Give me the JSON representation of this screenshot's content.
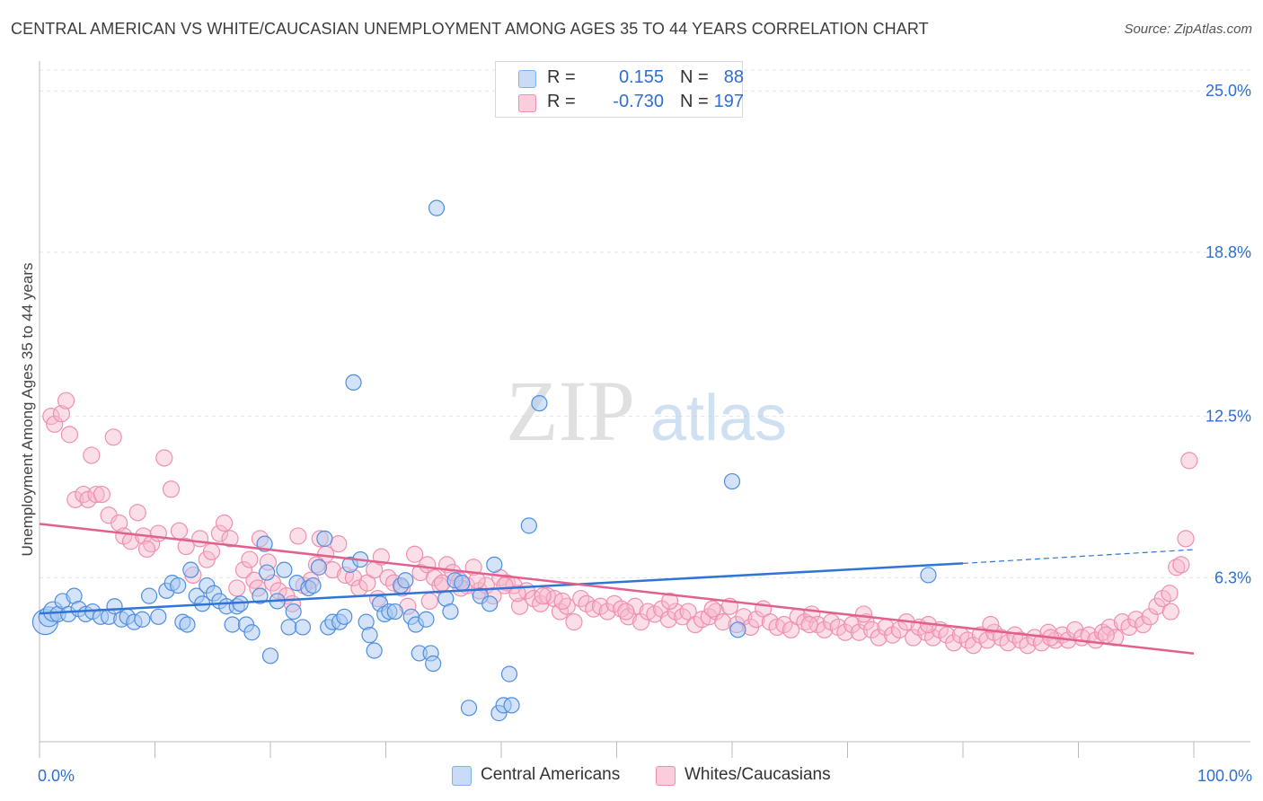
{
  "title": "CENTRAL AMERICAN VS WHITE/CAUCASIAN UNEMPLOYMENT AMONG AGES 35 TO 44 YEARS CORRELATION CHART",
  "source": "Source: ZipAtlas.com",
  "watermark": {
    "zip": "ZIP",
    "atlas": "atlas"
  },
  "legend": {
    "series": [
      {
        "r_label": "R =",
        "r_value": "0.155",
        "n_label": "N =",
        "n_value": "88",
        "color": "#7eb0f0",
        "fill": "#c9dcf7"
      },
      {
        "r_label": "R =",
        "r_value": "-0.730",
        "n_label": "N =",
        "n_value": "197",
        "color": "#f08fb0",
        "fill": "#f9cddc"
      }
    ]
  },
  "bottom_legend": {
    "series1": "Central Americans",
    "series2": "Whites/Caucasians"
  },
  "chart_data": {
    "type": "scatter",
    "title": "CENTRAL AMERICAN VS WHITE/CAUCASIAN UNEMPLOYMENT AMONG AGES 35 TO 44 YEARS CORRELATION CHART",
    "ylabel": "Unemployment Among Ages 35 to 44 years",
    "xlabel": "",
    "xlim": [
      0,
      100
    ],
    "ylim": [
      0,
      25.8
    ],
    "x_tick_labels": {
      "min": "0.0%",
      "max": "100.0%"
    },
    "y_ticks": [
      {
        "value": 6.3,
        "label": "6.3%"
      },
      {
        "value": 12.5,
        "label": "12.5%"
      },
      {
        "value": 18.8,
        "label": "18.8%"
      },
      {
        "value": 25.0,
        "label": "25.0%"
      }
    ],
    "grid": true,
    "legend_position": "top-center",
    "series": [
      {
        "name": "Central Americans",
        "color": "#3d7fd9",
        "points": [
          [
            0.5,
            4.6
          ],
          [
            0.8,
            4.8
          ],
          [
            1.2,
            5.0
          ],
          [
            1.6,
            4.9
          ],
          [
            2.0,
            5.4
          ],
          [
            2.5,
            4.9
          ],
          [
            3.0,
            5.6
          ],
          [
            3.4,
            5.1
          ],
          [
            4.0,
            4.9
          ],
          [
            4.6,
            5.0
          ],
          [
            5.3,
            4.8
          ],
          [
            6.0,
            4.8
          ],
          [
            6.5,
            5.2
          ],
          [
            7.1,
            4.7
          ],
          [
            7.6,
            4.8
          ],
          [
            8.2,
            4.6
          ],
          [
            8.9,
            4.7
          ],
          [
            9.5,
            5.6
          ],
          [
            10.3,
            4.8
          ],
          [
            11.0,
            5.8
          ],
          [
            11.5,
            6.1
          ],
          [
            12.0,
            6.0
          ],
          [
            12.4,
            4.6
          ],
          [
            12.8,
            4.5
          ],
          [
            13.1,
            6.6
          ],
          [
            13.6,
            5.6
          ],
          [
            14.1,
            5.3
          ],
          [
            14.5,
            6.0
          ],
          [
            15.1,
            5.7
          ],
          [
            15.6,
            5.4
          ],
          [
            16.2,
            5.2
          ],
          [
            16.7,
            4.5
          ],
          [
            17.1,
            5.2
          ],
          [
            17.4,
            5.3
          ],
          [
            17.9,
            4.5
          ],
          [
            18.4,
            4.2
          ],
          [
            19.1,
            5.6
          ],
          [
            19.5,
            7.6
          ],
          [
            19.7,
            6.5
          ],
          [
            20.0,
            3.3
          ],
          [
            20.6,
            5.4
          ],
          [
            21.2,
            6.6
          ],
          [
            21.6,
            4.4
          ],
          [
            22.0,
            5.0
          ],
          [
            22.3,
            6.1
          ],
          [
            22.8,
            4.4
          ],
          [
            23.3,
            5.9
          ],
          [
            23.7,
            6.0
          ],
          [
            24.2,
            6.7
          ],
          [
            24.7,
            7.8
          ],
          [
            25.0,
            4.4
          ],
          [
            25.4,
            4.6
          ],
          [
            26.0,
            4.6
          ],
          [
            26.4,
            4.8
          ],
          [
            26.9,
            6.8
          ],
          [
            27.2,
            13.8
          ],
          [
            27.8,
            7.0
          ],
          [
            28.3,
            4.6
          ],
          [
            28.6,
            4.1
          ],
          [
            29.0,
            3.5
          ],
          [
            29.5,
            5.3
          ],
          [
            29.9,
            4.9
          ],
          [
            30.3,
            5.0
          ],
          [
            30.8,
            5.0
          ],
          [
            31.3,
            6.0
          ],
          [
            31.7,
            6.2
          ],
          [
            32.2,
            4.8
          ],
          [
            32.6,
            4.5
          ],
          [
            32.9,
            3.4
          ],
          [
            33.5,
            4.7
          ],
          [
            33.9,
            3.4
          ],
          [
            34.1,
            3.0
          ],
          [
            34.4,
            20.5
          ],
          [
            35.2,
            5.5
          ],
          [
            35.6,
            5.0
          ],
          [
            36.0,
            6.2
          ],
          [
            36.6,
            6.1
          ],
          [
            37.2,
            1.3
          ],
          [
            38.2,
            5.6
          ],
          [
            39.0,
            5.3
          ],
          [
            39.4,
            6.8
          ],
          [
            39.8,
            1.1
          ],
          [
            40.2,
            1.4
          ],
          [
            40.7,
            2.6
          ],
          [
            40.9,
            1.4
          ],
          [
            42.4,
            8.3
          ],
          [
            43.3,
            13.0
          ],
          [
            60.0,
            10.0
          ],
          [
            60.5,
            4.3
          ],
          [
            77.0,
            6.4
          ]
        ]
      },
      {
        "name": "Whites/Caucasians",
        "color": "#e0608e",
        "points": [
          [
            1.0,
            12.5
          ],
          [
            1.3,
            12.2
          ],
          [
            1.9,
            12.6
          ],
          [
            2.3,
            13.1
          ],
          [
            2.6,
            11.8
          ],
          [
            3.1,
            9.3
          ],
          [
            3.8,
            9.5
          ],
          [
            4.2,
            9.3
          ],
          [
            4.5,
            11.0
          ],
          [
            4.9,
            9.5
          ],
          [
            5.4,
            9.5
          ],
          [
            6.0,
            8.7
          ],
          [
            6.4,
            11.7
          ],
          [
            6.9,
            8.4
          ],
          [
            7.3,
            7.9
          ],
          [
            7.9,
            7.7
          ],
          [
            8.5,
            8.8
          ],
          [
            9.0,
            7.9
          ],
          [
            9.7,
            7.6
          ],
          [
            10.3,
            8.0
          ],
          [
            10.8,
            10.9
          ],
          [
            11.4,
            9.7
          ],
          [
            12.1,
            8.1
          ],
          [
            12.7,
            7.5
          ],
          [
            13.3,
            6.4
          ],
          [
            13.9,
            7.8
          ],
          [
            14.5,
            7.0
          ],
          [
            14.9,
            7.3
          ],
          [
            15.6,
            8.0
          ],
          [
            16.0,
            8.4
          ],
          [
            16.5,
            7.8
          ],
          [
            17.1,
            5.9
          ],
          [
            17.7,
            6.6
          ],
          [
            18.2,
            7.0
          ],
          [
            18.6,
            6.2
          ],
          [
            19.1,
            7.8
          ],
          [
            19.8,
            6.9
          ],
          [
            20.2,
            6.1
          ],
          [
            20.7,
            5.8
          ],
          [
            21.4,
            5.6
          ],
          [
            21.9,
            5.3
          ],
          [
            22.4,
            7.9
          ],
          [
            22.9,
            6.0
          ],
          [
            23.5,
            6.2
          ],
          [
            24.3,
            7.8
          ],
          [
            24.8,
            7.2
          ],
          [
            25.4,
            6.6
          ],
          [
            25.9,
            7.6
          ],
          [
            26.5,
            6.4
          ],
          [
            27.2,
            6.3
          ],
          [
            27.7,
            5.9
          ],
          [
            28.4,
            6.1
          ],
          [
            29.0,
            6.6
          ],
          [
            29.6,
            7.1
          ],
          [
            30.2,
            6.3
          ],
          [
            30.7,
            6.1
          ],
          [
            31.4,
            5.9
          ],
          [
            31.9,
            5.2
          ],
          [
            32.5,
            7.2
          ],
          [
            33.0,
            6.5
          ],
          [
            33.6,
            6.8
          ],
          [
            34.2,
            6.3
          ],
          [
            34.7,
            6.0
          ],
          [
            35.3,
            6.8
          ],
          [
            35.8,
            6.5
          ],
          [
            36.4,
            6.2
          ],
          [
            37.0,
            6.0
          ],
          [
            37.6,
            6.7
          ],
          [
            38.1,
            5.8
          ],
          [
            38.7,
            6.0
          ],
          [
            39.3,
            5.6
          ],
          [
            39.9,
            6.3
          ],
          [
            40.5,
            6.1
          ],
          [
            41.1,
            6.0
          ],
          [
            41.6,
            5.2
          ],
          [
            42.2,
            5.8
          ],
          [
            42.8,
            5.5
          ],
          [
            43.4,
            5.3
          ],
          [
            44.0,
            5.6
          ],
          [
            44.6,
            5.5
          ],
          [
            45.1,
            5.0
          ],
          [
            45.7,
            5.2
          ],
          [
            46.3,
            4.6
          ],
          [
            46.9,
            5.5
          ],
          [
            47.4,
            5.3
          ],
          [
            48.0,
            5.1
          ],
          [
            48.6,
            5.2
          ],
          [
            49.2,
            5.0
          ],
          [
            49.8,
            5.3
          ],
          [
            50.4,
            5.1
          ],
          [
            51.0,
            4.8
          ],
          [
            51.6,
            5.2
          ],
          [
            52.1,
            4.6
          ],
          [
            52.7,
            5.0
          ],
          [
            53.3,
            4.9
          ],
          [
            53.9,
            5.1
          ],
          [
            54.5,
            4.7
          ],
          [
            55.1,
            5.0
          ],
          [
            55.7,
            4.8
          ],
          [
            56.2,
            5.0
          ],
          [
            56.8,
            4.5
          ],
          [
            57.4,
            4.7
          ],
          [
            58.0,
            4.8
          ],
          [
            58.6,
            5.0
          ],
          [
            59.2,
            4.6
          ],
          [
            59.8,
            5.2
          ],
          [
            60.4,
            4.5
          ],
          [
            61.0,
            4.8
          ],
          [
            61.6,
            4.4
          ],
          [
            62.1,
            4.7
          ],
          [
            62.7,
            5.1
          ],
          [
            63.3,
            4.6
          ],
          [
            63.9,
            4.4
          ],
          [
            64.5,
            4.5
          ],
          [
            65.1,
            4.3
          ],
          [
            65.7,
            4.8
          ],
          [
            66.3,
            4.6
          ],
          [
            66.9,
            4.9
          ],
          [
            67.4,
            4.5
          ],
          [
            68.0,
            4.3
          ],
          [
            68.6,
            4.6
          ],
          [
            69.2,
            4.4
          ],
          [
            69.8,
            4.2
          ],
          [
            70.4,
            4.5
          ],
          [
            71.0,
            4.2
          ],
          [
            71.6,
            4.6
          ],
          [
            72.1,
            4.3
          ],
          [
            72.7,
            4.0
          ],
          [
            73.3,
            4.4
          ],
          [
            73.9,
            4.1
          ],
          [
            74.5,
            4.3
          ],
          [
            75.1,
            4.6
          ],
          [
            75.7,
            4.0
          ],
          [
            76.2,
            4.4
          ],
          [
            76.8,
            4.2
          ],
          [
            77.4,
            4.0
          ],
          [
            78.0,
            4.3
          ],
          [
            78.6,
            4.1
          ],
          [
            79.2,
            3.8
          ],
          [
            79.8,
            4.1
          ],
          [
            80.4,
            3.9
          ],
          [
            80.9,
            3.7
          ],
          [
            81.5,
            4.1
          ],
          [
            82.1,
            3.9
          ],
          [
            82.7,
            4.2
          ],
          [
            83.3,
            4.0
          ],
          [
            83.9,
            3.8
          ],
          [
            84.5,
            4.1
          ],
          [
            85.0,
            3.9
          ],
          [
            85.6,
            3.7
          ],
          [
            86.2,
            4.0
          ],
          [
            86.8,
            3.8
          ],
          [
            87.4,
            4.2
          ],
          [
            88.0,
            3.9
          ],
          [
            88.6,
            4.1
          ],
          [
            89.1,
            3.9
          ],
          [
            89.7,
            4.3
          ],
          [
            90.3,
            4.0
          ],
          [
            90.9,
            4.1
          ],
          [
            91.5,
            3.9
          ],
          [
            92.1,
            4.2
          ],
          [
            92.7,
            4.4
          ],
          [
            93.2,
            4.0
          ],
          [
            93.8,
            4.6
          ],
          [
            94.4,
            4.4
          ],
          [
            95.0,
            4.7
          ],
          [
            95.6,
            4.5
          ],
          [
            96.2,
            4.8
          ],
          [
            96.8,
            5.2
          ],
          [
            97.3,
            5.5
          ],
          [
            97.9,
            5.7
          ],
          [
            98.5,
            6.7
          ],
          [
            98.9,
            6.8
          ],
          [
            99.3,
            7.8
          ],
          [
            99.6,
            10.8
          ],
          [
            9.3,
            7.4
          ],
          [
            36.5,
            5.9
          ],
          [
            43.6,
            5.6
          ],
          [
            37.9,
            6.2
          ],
          [
            40.3,
            6.0
          ],
          [
            33.8,
            5.4
          ],
          [
            41.4,
            5.7
          ],
          [
            54.6,
            5.4
          ],
          [
            58.3,
            5.1
          ],
          [
            66.7,
            4.5
          ],
          [
            71.4,
            4.9
          ],
          [
            77.0,
            4.5
          ],
          [
            82.4,
            4.5
          ],
          [
            87.6,
            4.0
          ],
          [
            92.4,
            4.1
          ],
          [
            98.0,
            5.0
          ],
          [
            18.9,
            5.9
          ],
          [
            24.0,
            6.8
          ],
          [
            29.3,
            5.5
          ],
          [
            34.9,
            6.1
          ],
          [
            45.3,
            5.4
          ],
          [
            50.8,
            5.0
          ]
        ]
      }
    ],
    "trend_lines": [
      {
        "series": "Central Americans",
        "x": [
          0,
          80
        ],
        "y": [
          4.93,
          6.85
        ],
        "dashed_extension_to_x": 100,
        "dashed_extension_y": 7.38
      },
      {
        "series": "Whites/Caucasians",
        "x": [
          0,
          100
        ],
        "y": [
          8.37,
          3.39
        ]
      }
    ]
  }
}
